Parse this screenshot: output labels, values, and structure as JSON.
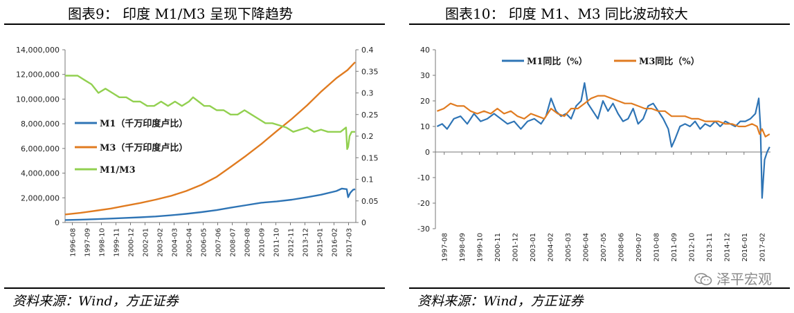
{
  "left": {
    "title": "图表9：    印度 M1/M3 呈现下降趋势",
    "source": "资料来源：Wind，方正证券",
    "chart_data": {
      "type": "line",
      "x_ticks": [
        "1996-08",
        "1997-09",
        "1998-10",
        "1999-11",
        "2000-12",
        "2002-01",
        "2003-02",
        "2004-03",
        "2005-04",
        "2006-05",
        "2007-06",
        "2008-07",
        "2009-08",
        "2010-09",
        "2011-10",
        "2012-11",
        "2013-12",
        "2015-01",
        "2016-02",
        "2017-03"
      ],
      "y_left": {
        "min": 0,
        "max": 14000000,
        "ticks": [
          "0",
          "2,000,000",
          "4,000,000",
          "6,000,000",
          "8,000,000",
          "10,000,000",
          "12,000,000",
          "14,000,000"
        ]
      },
      "y_right": {
        "min": 0,
        "max": 0.4,
        "ticks": [
          "0",
          "0.05",
          "0.1",
          "0.15",
          "0.2",
          "0.25",
          "0.3",
          "0.35",
          "0.4"
        ]
      },
      "series": [
        {
          "name": "M1（千万印度卢比）",
          "color": "#2e74b5",
          "axis": "left",
          "x": [
            1996.6,
            1997.7,
            1998.8,
            1999.9,
            2000.9,
            2002.0,
            2003.1,
            2004.2,
            2005.3,
            2006.4,
            2007.5,
            2008.5,
            2009.6,
            2010.7,
            2011.8,
            2012.9,
            2014.0,
            2015.0,
            2016.1,
            2016.5,
            2016.85,
            2016.95,
            2017.1,
            2017.3,
            2017.45
          ],
          "y": [
            200000,
            230000,
            270000,
            320000,
            370000,
            420000,
            490000,
            580000,
            700000,
            840000,
            1000000,
            1200000,
            1400000,
            1600000,
            1700000,
            1850000,
            2050000,
            2250000,
            2550000,
            2750000,
            2700000,
            2050000,
            2400000,
            2650000,
            2700000
          ]
        },
        {
          "name": "M3（千万印度卢比）",
          "color": "#e07b20",
          "axis": "left",
          "x": [
            1996.6,
            1997.7,
            1998.8,
            1999.9,
            2000.9,
            2002.0,
            2003.1,
            2004.2,
            2005.3,
            2006.4,
            2007.5,
            2008.5,
            2009.6,
            2010.7,
            2011.8,
            2012.9,
            2014.0,
            2015.0,
            2016.1,
            2016.9,
            2017.45
          ],
          "y": [
            650000,
            780000,
            950000,
            1130000,
            1350000,
            1580000,
            1850000,
            2150000,
            2550000,
            3050000,
            3700000,
            4500000,
            5400000,
            6350000,
            7400000,
            8400000,
            9500000,
            10600000,
            11700000,
            12350000,
            13000000
          ]
        },
        {
          "name": "M1/M3",
          "color": "#92d050",
          "axis": "right",
          "x": [
            1996.6,
            1997.0,
            1997.5,
            1998.0,
            1998.5,
            1999.0,
            1999.5,
            2000.0,
            2000.5,
            2001.0,
            2001.5,
            2002.0,
            2002.5,
            2003.0,
            2003.5,
            2004.0,
            2004.5,
            2005.0,
            2005.5,
            2005.8,
            2006.2,
            2006.6,
            2007.0,
            2007.5,
            2008.0,
            2008.5,
            2009.0,
            2009.5,
            2010.0,
            2010.5,
            2011.0,
            2011.5,
            2012.0,
            2012.5,
            2013.0,
            2013.5,
            2014.0,
            2014.5,
            2015.0,
            2015.5,
            2016.0,
            2016.4,
            2016.8,
            2016.88,
            2016.95,
            2017.05,
            2017.2,
            2017.45
          ],
          "y": [
            0.34,
            0.34,
            0.34,
            0.33,
            0.32,
            0.3,
            0.31,
            0.3,
            0.29,
            0.29,
            0.28,
            0.28,
            0.27,
            0.27,
            0.28,
            0.27,
            0.28,
            0.27,
            0.28,
            0.29,
            0.28,
            0.27,
            0.27,
            0.26,
            0.26,
            0.25,
            0.25,
            0.26,
            0.25,
            0.24,
            0.23,
            0.23,
            0.225,
            0.22,
            0.21,
            0.215,
            0.22,
            0.21,
            0.215,
            0.21,
            0.21,
            0.21,
            0.22,
            0.17,
            0.175,
            0.2,
            0.21,
            0.21
          ]
        }
      ]
    }
  },
  "right": {
    "title": "图表10：          印度 M1、M3 同比波动较大",
    "source": "资料来源：Wind，方正证券",
    "watermark": "泽平宏观",
    "chart_data": {
      "type": "line",
      "x_ticks": [
        "1997-08",
        "1998-09",
        "1999-10",
        "2000-11",
        "2001-12",
        "2003-01",
        "2004-02",
        "2005-03",
        "2006-04",
        "2007-05",
        "2008-06",
        "2009-07",
        "2010-08",
        "2011-09",
        "2012-10",
        "2013-11",
        "2014-12",
        "2016-01",
        "2017-02"
      ],
      "y": {
        "min": -30,
        "max": 40,
        "ticks": [
          "-30",
          "-20",
          "-10",
          "0",
          "10",
          "20",
          "30",
          "40"
        ]
      },
      "series": [
        {
          "name": "M1同比（%）",
          "color": "#2e74b5",
          "x": [
            1997.6,
            1997.9,
            1998.2,
            1998.6,
            1999.0,
            1999.4,
            1999.8,
            2000.2,
            2000.6,
            2001.0,
            2001.4,
            2001.8,
            2002.2,
            2002.6,
            2003.0,
            2003.4,
            2003.8,
            2004.1,
            2004.4,
            2004.7,
            2005.0,
            2005.3,
            2005.6,
            2005.9,
            2006.2,
            2006.4,
            2006.6,
            2006.9,
            2007.2,
            2007.5,
            2007.8,
            2008.1,
            2008.4,
            2008.7,
            2009.0,
            2009.3,
            2009.6,
            2009.9,
            2010.2,
            2010.5,
            2010.8,
            2011.1,
            2011.4,
            2011.6,
            2011.8,
            2012.1,
            2012.4,
            2012.7,
            2013.0,
            2013.3,
            2013.6,
            2013.9,
            2014.2,
            2014.5,
            2014.8,
            2015.1,
            2015.4,
            2015.7,
            2016.0,
            2016.3,
            2016.6,
            2016.8,
            2016.9,
            2017.0,
            2017.15,
            2017.3,
            2017.45
          ],
          "y": [
            10,
            11,
            9,
            13,
            14,
            11,
            15,
            12,
            13,
            15,
            13,
            11,
            12,
            9,
            12,
            13,
            11,
            14,
            21,
            16,
            14,
            15,
            13,
            18,
            20,
            27,
            19,
            16,
            13,
            20,
            16,
            19,
            15,
            12,
            13,
            17,
            11,
            13,
            18,
            19,
            16,
            13,
            9,
            2,
            5,
            10,
            11,
            10,
            12,
            9,
            11,
            10,
            12,
            10,
            12,
            11,
            10,
            12,
            12,
            13,
            15,
            21,
            10,
            -18,
            -3,
            0,
            2
          ]
        },
        {
          "name": "M3同比（%）",
          "color": "#e07b20",
          "x": [
            1997.6,
            1998.0,
            1998.4,
            1998.8,
            1999.2,
            1999.6,
            2000.0,
            2000.4,
            2000.8,
            2001.2,
            2001.6,
            2002.0,
            2002.4,
            2002.8,
            2003.2,
            2003.6,
            2004.0,
            2004.4,
            2004.8,
            2005.2,
            2005.6,
            2006.0,
            2006.4,
            2006.8,
            2007.2,
            2007.6,
            2008.0,
            2008.4,
            2008.8,
            2009.2,
            2009.6,
            2010.0,
            2010.4,
            2010.8,
            2011.2,
            2011.6,
            2012.0,
            2012.4,
            2012.8,
            2013.2,
            2013.6,
            2014.0,
            2014.4,
            2014.8,
            2015.2,
            2015.6,
            2016.0,
            2016.4,
            2016.7,
            2016.85,
            2017.0,
            2017.2,
            2017.45
          ],
          "y": [
            16,
            17,
            19,
            18,
            18,
            16,
            15,
            16,
            15,
            17,
            15,
            16,
            14,
            13,
            15,
            14,
            13,
            17,
            15,
            14,
            17,
            17,
            19,
            21,
            22,
            22,
            21,
            20,
            19,
            19,
            18,
            17,
            17,
            16,
            16,
            14,
            14,
            14,
            13,
            13,
            12,
            12,
            12,
            11,
            11,
            10,
            10,
            11,
            10,
            7,
            9,
            6,
            7
          ]
        }
      ]
    }
  }
}
